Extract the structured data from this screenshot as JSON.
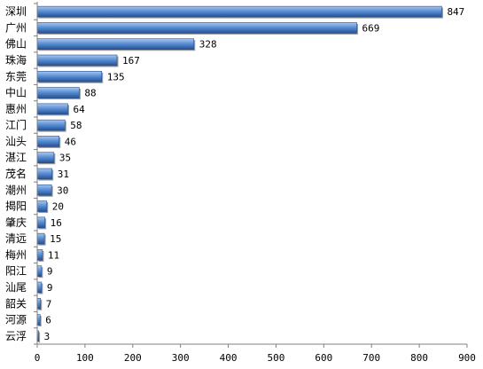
{
  "chart_data": {
    "type": "bar",
    "orientation": "horizontal",
    "categories": [
      "深圳",
      "广州",
      "佛山",
      "珠海",
      "东莞",
      "中山",
      "惠州",
      "江门",
      "汕头",
      "湛江",
      "茂名",
      "潮州",
      "揭阳",
      "肇庆",
      "清远",
      "梅州",
      "阳江",
      "汕尾",
      "韶关",
      "河源",
      "云浮"
    ],
    "values": [
      847,
      669,
      328,
      167,
      135,
      88,
      64,
      58,
      46,
      35,
      31,
      30,
      20,
      16,
      15,
      11,
      9,
      9,
      7,
      6,
      3
    ],
    "xlim": [
      0,
      900
    ],
    "xticks": [
      0,
      100,
      200,
      300,
      400,
      500,
      600,
      700,
      800,
      900
    ],
    "grid": false,
    "legend": "none",
    "data_labels": true,
    "colors": {
      "bar_light": "#a9c7ee",
      "bar_mid": "#5b8fd6",
      "bar_dark": "#23508f",
      "axis": "#808080"
    }
  }
}
